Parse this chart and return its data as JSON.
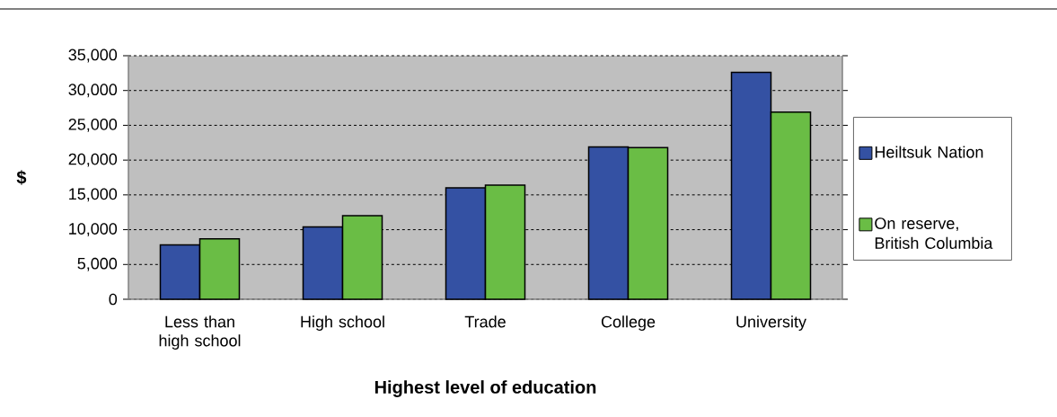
{
  "chart_data": {
    "type": "bar",
    "categories": [
      "Less than high school",
      "High school",
      "Trade",
      "College",
      "University"
    ],
    "series": [
      {
        "name": "Heiltsuk Nation",
        "color": "#3451a3",
        "values": [
          7800,
          10400,
          16000,
          21900,
          32600
        ]
      },
      {
        "name": "On reserve, British Columbia",
        "color": "#6abd45",
        "values": [
          8700,
          12000,
          16400,
          21800,
          26900
        ]
      }
    ],
    "xlabel": "Highest level of education",
    "ylabel": "$",
    "ylim": [
      0,
      35000
    ],
    "yticks": [
      0,
      {
        "value": 5000,
        "label": "5,000"
      },
      {
        "value": 10000,
        "label": "10,000"
      },
      {
        "value": 15000,
        "label": "15,000"
      },
      {
        "value": 20000,
        "label": "20,000"
      },
      {
        "value": 25000,
        "label": "25,000"
      },
      {
        "value": 30000,
        "label": "30,000"
      },
      {
        "value": 35000,
        "label": "35,000"
      }
    ],
    "grid": "y",
    "legend": "right"
  }
}
